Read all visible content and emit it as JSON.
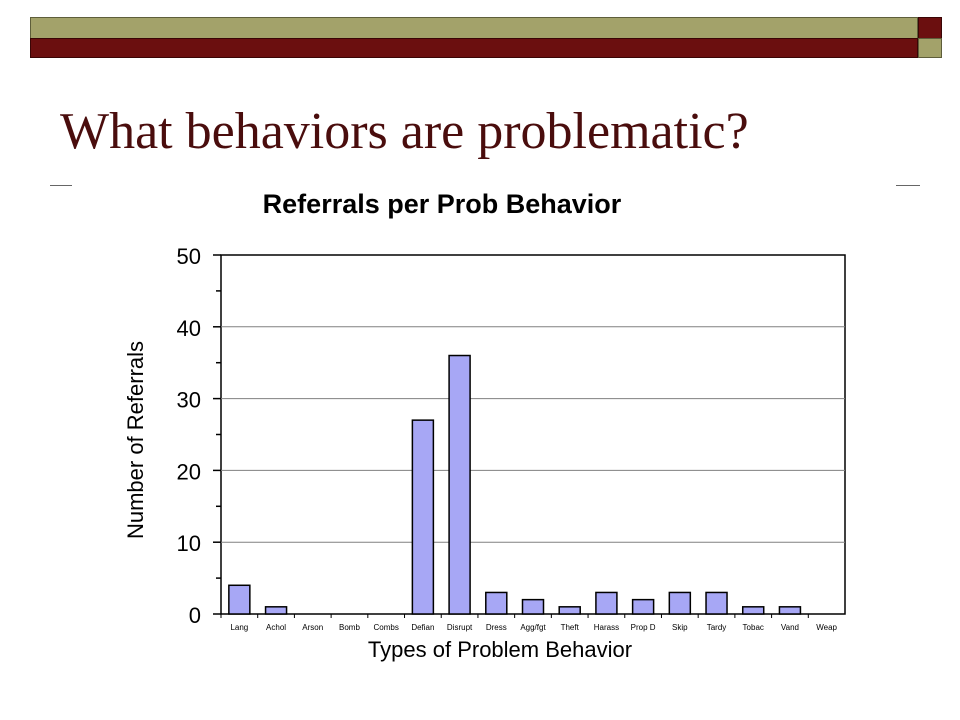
{
  "slide": {
    "title": "What behaviors are problematic?",
    "colors": {
      "olive": "#a3a26a",
      "maroon": "#6b0f0f",
      "title_text": "#4a0d0d",
      "bar_fill": "#a7a7f5",
      "bar_stroke": "#000000",
      "grid": "#808080"
    }
  },
  "chart_data": {
    "type": "bar",
    "title": "Referrals per Prob Behavior",
    "xlabel": "Types of Problem Behavior",
    "ylabel": "Number of Referrals",
    "ylim": [
      0,
      50
    ],
    "yticks": [
      0,
      10,
      20,
      30,
      40,
      50
    ],
    "grid": true,
    "categories": [
      "Lang",
      "Achol",
      "Arson",
      "Bomb",
      "Combs",
      "Defian",
      "Disrupt",
      "Dress",
      "Agg/fgt",
      "Theft",
      "Harass",
      "Prop D",
      "Skip",
      "Tardy",
      "Tobac",
      "Vand",
      "Weap"
    ],
    "values": [
      4,
      1,
      0,
      0,
      0,
      27,
      36,
      3,
      2,
      1,
      3,
      2,
      3,
      3,
      1,
      1,
      0
    ]
  }
}
